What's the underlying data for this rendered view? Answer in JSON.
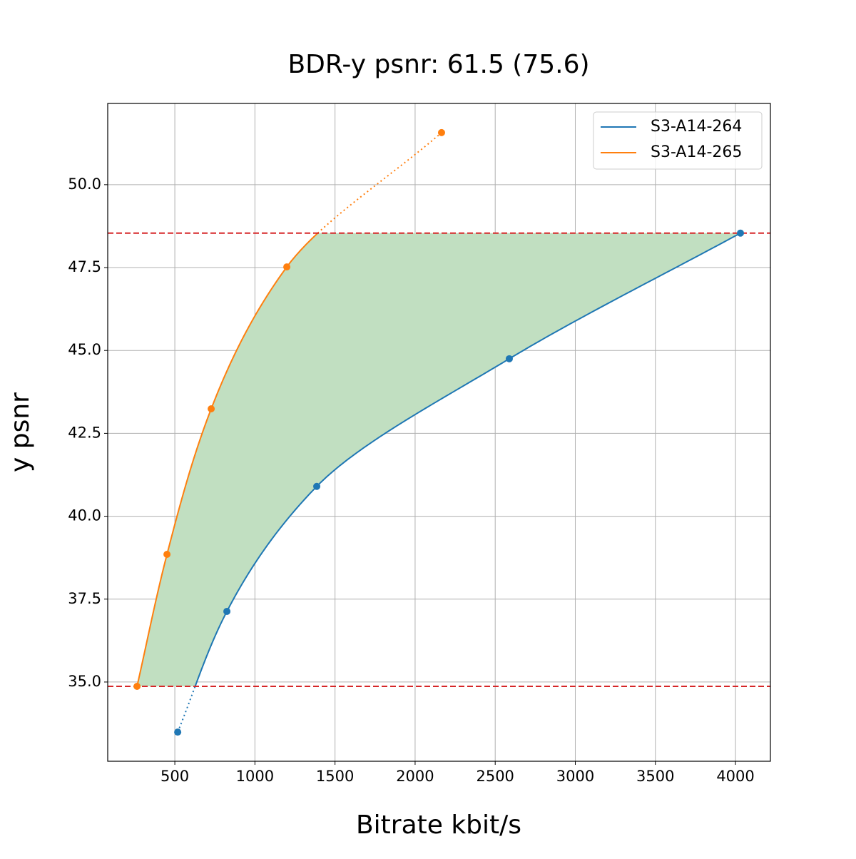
{
  "chart_data": {
    "type": "line",
    "title": "BDR-y psnr: 61.5 (75.6)",
    "x_label": "Bitrate kbit/s",
    "y_label": "y psnr",
    "series": [
      {
        "name": "S3-A14-264",
        "color": "#1f77b4",
        "x": [
          518,
          825,
          1386,
          2588,
          4031
        ],
        "values": [
          33.49,
          37.13,
          40.9,
          44.75,
          48.54
        ]
      },
      {
        "name": "S3-A14-265",
        "color": "#ff7f0e",
        "x": [
          264,
          451,
          727,
          1199,
          2165
        ],
        "values": [
          34.87,
          38.85,
          43.24,
          47.52,
          51.57
        ]
      }
    ],
    "reference_lines": [
      48.54,
      34.87
    ],
    "reference_color": "#d62728",
    "fill_color": "#c1dfc1",
    "xlim": [
      81,
      4218
    ],
    "ylim": [
      32.61,
      52.45
    ],
    "xticks": [
      500,
      1000,
      1500,
      2000,
      2500,
      3000,
      3500,
      4000
    ],
    "yticks": [
      {
        "value": 35,
        "label": "35.0"
      },
      37.5,
      {
        "value": 40,
        "label": "40.0"
      },
      42.5,
      {
        "value": 45,
        "label": "45.0"
      },
      47.5,
      {
        "value": 50,
        "label": "50.0"
      }
    ],
    "grid": true,
    "legend": "upper right"
  }
}
